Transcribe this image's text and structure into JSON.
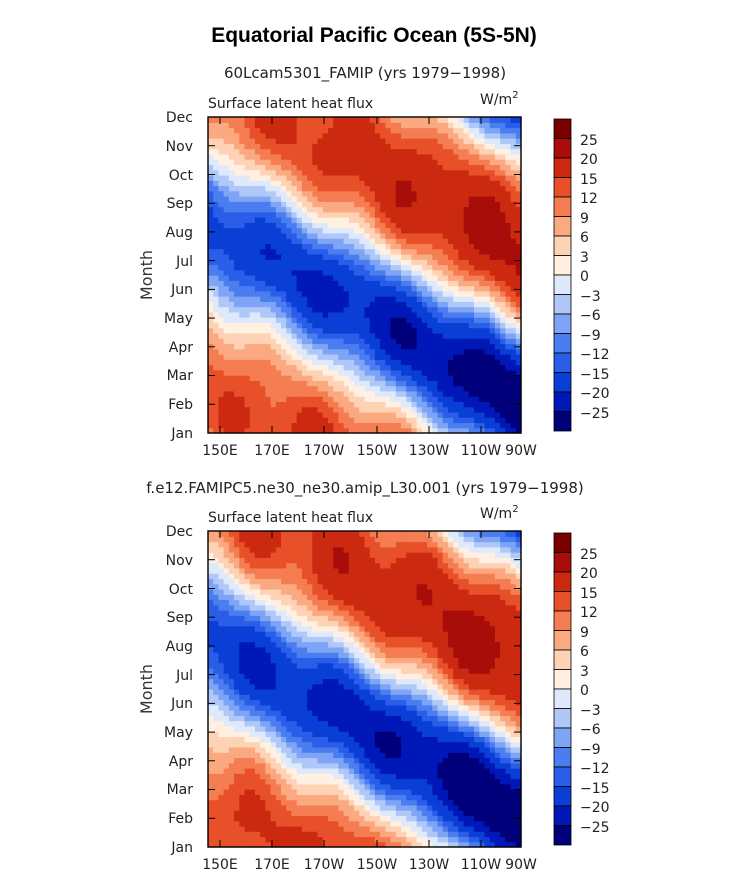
{
  "title": "Equatorial Pacific Ocean (5S-5N)",
  "levels": [
    -25,
    -20,
    -15,
    -12,
    -9,
    -6,
    -3,
    0,
    3,
    6,
    9,
    12,
    15,
    20,
    25
  ],
  "colors": [
    "#00007a",
    "#0018b8",
    "#0a3fd6",
    "#2a5ee8",
    "#4a7ef0",
    "#7ea4f5",
    "#b0c8f8",
    "#deeafc",
    "#fff0e2",
    "#fdd2b5",
    "#fba981",
    "#f57d52",
    "#e8502a",
    "#cc2a10",
    "#a80d0a",
    "#7a0000"
  ],
  "chart_data": [
    {
      "type": "heatmap",
      "subtitle": "60Lcam5301_FAMIP (yrs 1979−1998)",
      "label_left": "Surface latent heat flux",
      "label_right": "W/m",
      "label_right_sup": "2",
      "ylabel": "Month",
      "x_ticks": [
        "150E",
        "170E",
        "170W",
        "150W",
        "130W",
        "110W",
        "90W"
      ],
      "x_range": [
        150,
        270
      ],
      "y_ticks": [
        "Jan",
        "Feb",
        "Mar",
        "Apr",
        "May",
        "Jun",
        "Jul",
        "Aug",
        "Sep",
        "Oct",
        "Nov",
        "Dec"
      ],
      "colorbar_labels": [
        "25",
        "20",
        "15",
        "12",
        "9",
        "6",
        "3",
        "0",
        "−3",
        "−6",
        "−9",
        "−12",
        "−15",
        "−20",
        "−25"
      ]
    },
    {
      "type": "heatmap",
      "subtitle": "f.e12.FAMIPC5.ne30_ne30.amip_L30.001 (yrs 1979−1998)",
      "label_left": "Surface latent heat flux",
      "label_right": "W/m",
      "label_right_sup": "2",
      "ylabel": "Month",
      "x_ticks": [
        "150E",
        "170E",
        "170W",
        "150W",
        "130W",
        "110W",
        "90W"
      ],
      "x_range": [
        150,
        270
      ],
      "y_ticks": [
        "Jan",
        "Feb",
        "Mar",
        "Apr",
        "May",
        "Jun",
        "Jul",
        "Aug",
        "Sep",
        "Oct",
        "Nov",
        "Dec"
      ],
      "colorbar_labels": [
        "25",
        "20",
        "15",
        "12",
        "9",
        "6",
        "3",
        "0",
        "−3",
        "−6",
        "−9",
        "−12",
        "−15",
        "−20",
        "−25"
      ]
    }
  ]
}
